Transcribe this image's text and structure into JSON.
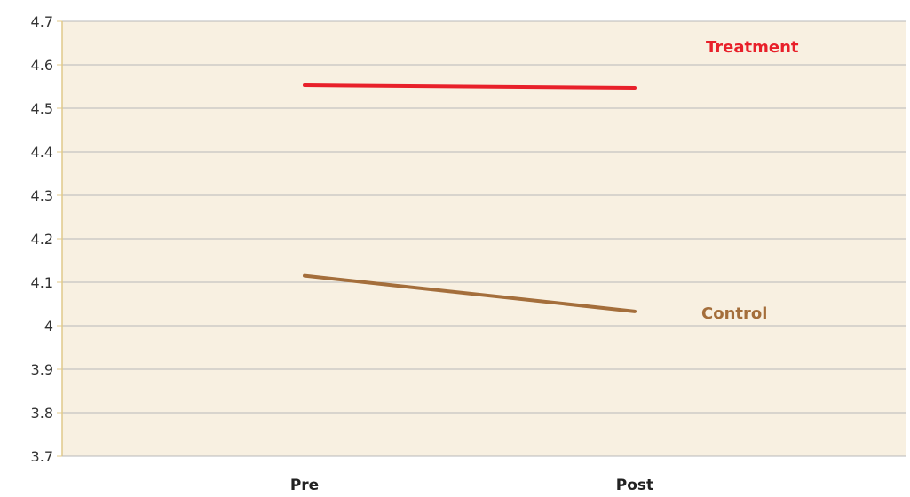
{
  "chart_data": {
    "type": "line",
    "categories": [
      "Pre",
      "Post"
    ],
    "series": [
      {
        "name": "Treatment",
        "values": [
          4.553,
          4.547
        ],
        "color": "#e8202a"
      },
      {
        "name": "Control",
        "values": [
          4.115,
          4.033
        ],
        "color": "#a46e3b"
      }
    ],
    "ylim": [
      3.7,
      4.7
    ],
    "yticks": [
      "3.7",
      "3.8",
      "3.9",
      "4",
      "4.1",
      "4.2",
      "4.3",
      "4.4",
      "4.5",
      "4.6",
      "4.7"
    ],
    "grid": true,
    "legend": "inline labels at line ends",
    "plot_background": "#f8f0e1",
    "axis_color": "#e0c98a",
    "grid_color": "#b9b9b9"
  }
}
